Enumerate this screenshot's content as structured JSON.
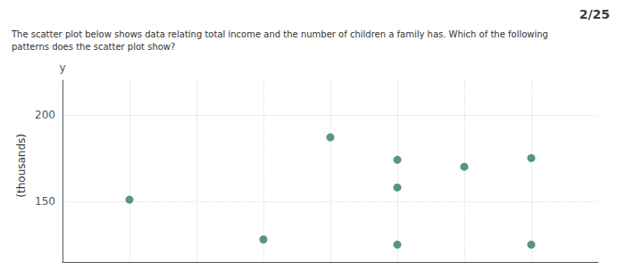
{
  "chart_data": {
    "type": "scatter",
    "title": "2/25",
    "subtitle": "The scatter plot below shows data relating total income and the number of children a family has. Which of the following\npatterns does the scatter plot show?",
    "ylabel": "y",
    "annotations": [
      "(thousands)"
    ],
    "x": [
      1,
      3,
      4,
      5,
      5,
      5,
      6,
      7,
      7
    ],
    "values": [
      151,
      128,
      187,
      174,
      158,
      125,
      170,
      125,
      175
    ],
    "color": "#2e7d5e",
    "xlim": [
      0,
      8
    ],
    "xticks": [
      1,
      2,
      3,
      4,
      5,
      6,
      7
    ],
    "ylim": [
      115,
      220
    ],
    "yticks": [
      150,
      200
    ],
    "grid": true,
    "tick_labels": "y"
  }
}
